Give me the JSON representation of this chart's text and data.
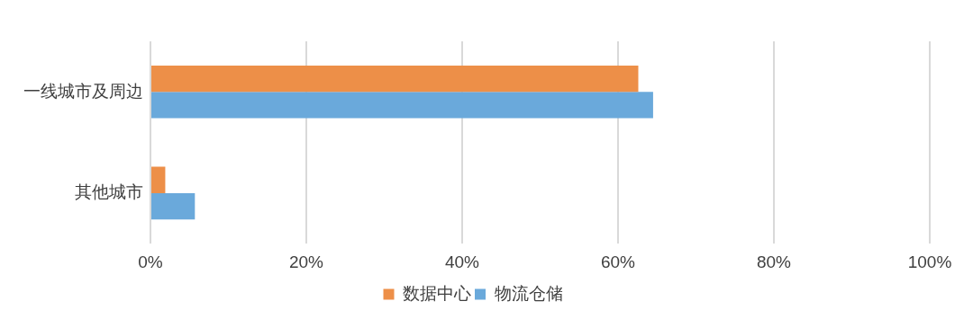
{
  "chart_data": {
    "type": "bar",
    "orientation": "horizontal",
    "categories": [
      "一线城市及周边",
      "其他城市"
    ],
    "series": [
      {
        "name": "数据中心",
        "color": "#ed8f48",
        "values": [
          62.6,
          1.9
        ]
      },
      {
        "name": "物流仓储",
        "color": "#6aa9db",
        "values": [
          64.5,
          5.7
        ]
      }
    ],
    "xlim": [
      0,
      100
    ],
    "xticks": [
      {
        "value": 0,
        "label": "0%"
      },
      {
        "value": 20,
        "label": "20%"
      },
      {
        "value": 40,
        "label": "40%"
      },
      {
        "value": 60,
        "label": "60%"
      },
      {
        "value": 80,
        "label": "80%"
      },
      {
        "value": 100,
        "label": "100%"
      }
    ],
    "grid": "x",
    "legend": "bottom"
  }
}
